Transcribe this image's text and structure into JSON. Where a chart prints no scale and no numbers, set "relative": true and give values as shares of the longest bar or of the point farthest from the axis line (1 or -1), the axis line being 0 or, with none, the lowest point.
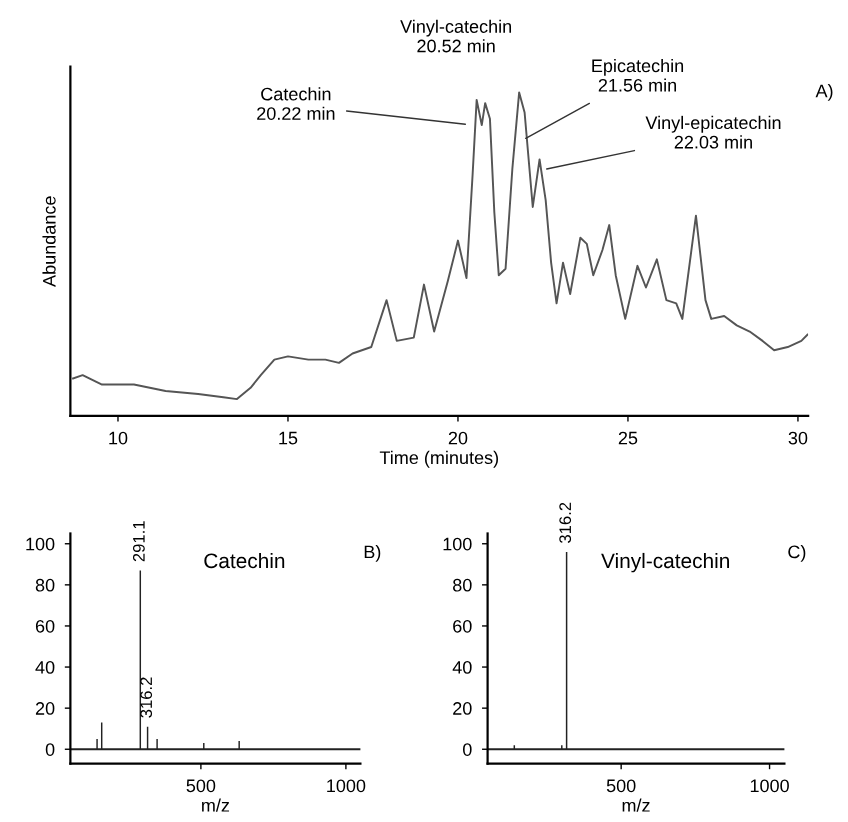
{
  "chart_data": [
    {
      "type": "line",
      "relative": true,
      "color": "#555555",
      "xlabel": "Time (minutes)",
      "ylabel": "Abundance",
      "xlim": [
        8.6,
        30.3
      ],
      "xticks": [
        10,
        15,
        20,
        25,
        30
      ],
      "x": [
        8.68,
        8.96,
        9.53,
        10.47,
        11.4,
        12.36,
        13.1,
        13.5,
        13.9,
        14.2,
        14.6,
        15.0,
        15.6,
        16.1,
        16.5,
        16.9,
        17.45,
        17.9,
        18.2,
        18.7,
        19.0,
        19.3,
        19.7,
        20.0,
        20.25,
        20.43,
        20.55,
        20.7,
        20.8,
        20.94,
        21.07,
        21.2,
        21.4,
        21.6,
        21.8,
        21.96,
        22.2,
        22.4,
        22.58,
        22.74,
        22.9,
        23.09,
        23.3,
        23.6,
        23.79,
        23.98,
        24.25,
        24.45,
        24.64,
        24.92,
        25.28,
        25.53,
        25.85,
        26.13,
        26.42,
        26.6,
        27.0,
        27.28,
        27.45,
        27.83,
        28.2,
        28.58,
        28.96,
        29.3,
        29.7,
        30.1,
        30.28
      ],
      "values": [
        0.116,
        0.126,
        0.097,
        0.097,
        0.077,
        0.068,
        0.058,
        0.052,
        0.087,
        0.126,
        0.174,
        0.184,
        0.174,
        0.174,
        0.164,
        0.193,
        0.213,
        0.358,
        0.232,
        0.242,
        0.406,
        0.261,
        0.416,
        0.542,
        0.426,
        0.745,
        0.977,
        0.899,
        0.967,
        0.919,
        0.629,
        0.435,
        0.455,
        0.764,
        1.0,
        0.938,
        0.646,
        0.793,
        0.667,
        0.474,
        0.348,
        0.474,
        0.377,
        0.551,
        0.532,
        0.435,
        0.513,
        0.59,
        0.435,
        0.3,
        0.464,
        0.397,
        0.484,
        0.358,
        0.348,
        0.3,
        0.619,
        0.358,
        0.3,
        0.309,
        0.28,
        0.261,
        0.232,
        0.203,
        0.213,
        0.232,
        0.251
      ],
      "annotations": [
        {
          "text": "Catechin\n20.22 min",
          "x": 20.38,
          "y": 0.9
        },
        {
          "text": "Vinyl-catechin\n20.52 min",
          "x": 20.6,
          "y": 0.98
        },
        {
          "text": "Epicatechin\n21.56 min",
          "x": 21.85,
          "y": 0.85
        },
        {
          "text": "Vinyl-epicatechin\n22.03 min",
          "x": 22.45,
          "y": 0.76
        },
        "A)"
      ]
    },
    {
      "type": "bar",
      "color": "#222222",
      "title": "Catechin",
      "xlabel": "m/z",
      "xlim": [
        50,
        1050
      ],
      "xticks": [
        500,
        1000
      ],
      "ylim": [
        -7,
        105
      ],
      "yticks": [
        0,
        20,
        40,
        60,
        80,
        100
      ],
      "x": [
        142,
        158,
        291.1,
        316.2,
        349,
        510,
        632
      ],
      "values": [
        5,
        13,
        87,
        11,
        5,
        3,
        4
      ],
      "ref_lines": [
        {
          "axis": "y",
          "value": 0
        }
      ],
      "annotations": [
        {
          "text": "291.1",
          "x": 291.1,
          "y": 87
        },
        {
          "text": "316.2",
          "x": 316.2,
          "y": 11
        },
        "B)"
      ]
    },
    {
      "type": "bar",
      "color": "#222222",
      "title": "Vinyl-catechin",
      "xlabel": "m/z",
      "xlim": [
        50,
        1050
      ],
      "xticks": [
        500,
        1000
      ],
      "ylim": [
        -7,
        105
      ],
      "yticks": [
        0,
        20,
        40,
        60,
        80,
        100
      ],
      "x": [
        140,
        300,
        316.2
      ],
      "values": [
        2,
        2,
        96
      ],
      "ref_lines": [
        {
          "axis": "y",
          "value": 0
        }
      ],
      "annotations": [
        {
          "text": "316.2",
          "x": 316.2,
          "y": 96
        },
        "C)"
      ]
    }
  ]
}
